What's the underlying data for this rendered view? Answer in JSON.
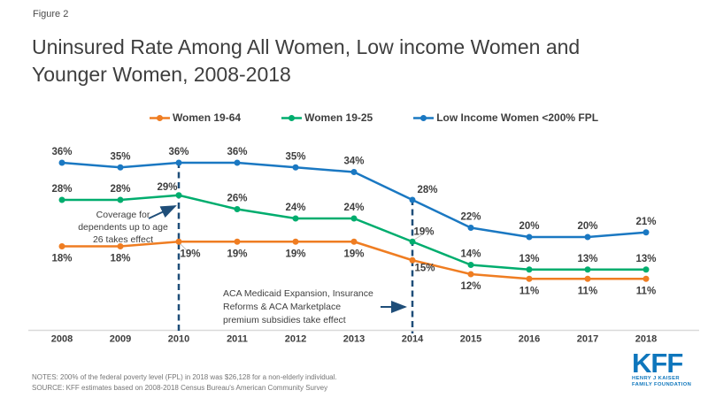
{
  "figure_label": "Figure 2",
  "title": "Uninsured Rate Among All Women, Low income Women and Younger Women, 2008-2018",
  "colors": {
    "orange": "#EF7D22",
    "green": "#00AD6E",
    "blue": "#1A78C2",
    "navy": "#1F4E79",
    "text_dark": "#3E3E3E",
    "notes_gray": "#767676",
    "axis_gray": "#DADADA",
    "leader_gray": "#BFBFBF",
    "logo_blue": "#0E76BC"
  },
  "chart_data": {
    "type": "line",
    "x": [
      "2008",
      "2009",
      "2010",
      "2011",
      "2012",
      "2013",
      "2014",
      "2015",
      "2016",
      "2017",
      "2018"
    ],
    "series": [
      {
        "name": "Women 19-64",
        "color": "#EF7D22",
        "values": [
          18,
          18,
          19,
          19,
          19,
          19,
          15,
          12,
          11,
          11,
          11
        ]
      },
      {
        "name": "Women 19-25",
        "color": "#00AD6E",
        "values": [
          28,
          28,
          29,
          26,
          24,
          24,
          19,
          14,
          13,
          13,
          13
        ]
      },
      {
        "name": "Low Income Women <200% FPL",
        "color": "#1A78C2",
        "values": [
          36,
          35,
          36,
          36,
          35,
          34,
          28,
          22,
          20,
          20,
          21
        ]
      }
    ],
    "value_suffix": "%",
    "ylim": [
      0,
      42
    ],
    "grid": false,
    "legend_position": "top",
    "event_markers": [
      "2010",
      "2014"
    ]
  },
  "annotations": [
    {
      "year": "2010",
      "lines": [
        "Coverage for",
        "dependents up to age",
        "26 takes effect"
      ]
    },
    {
      "year": "2014",
      "lines": [
        "ACA Medicaid Expansion, Insurance",
        "Reforms & ACA Marketplace",
        "premium subsidies take effect"
      ]
    }
  ],
  "notes": "NOTES: 200% of the federal poverty level (FPL) in 2018 was $26,128 for a non-elderly individual.",
  "source": "SOURCE: KFF estimates based on 2008-2018 Census Bureau's American Community Survey",
  "logo": {
    "text": "KFF",
    "subtext_line1": "HENRY J KAISER",
    "subtext_line2": "FAMILY FOUNDATION"
  }
}
